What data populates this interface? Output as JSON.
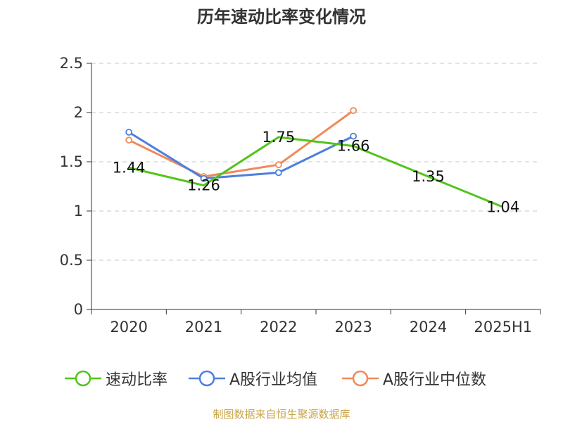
{
  "chart_data": {
    "type": "line",
    "title": "历年速动比率变化情况",
    "categories": [
      "2020",
      "2021",
      "2022",
      "2023",
      "2024",
      "2025H1"
    ],
    "ylim": [
      0,
      2.5
    ],
    "yticks": [
      0,
      0.5,
      1,
      1.5,
      2,
      2.5
    ],
    "yticklabels": [
      "0",
      "0.5",
      "1",
      "1.5",
      "2",
      "2.5"
    ],
    "grid": true,
    "legend_position": "bottom",
    "series": [
      {
        "name": "速动比率",
        "color": "#52c41a",
        "values": [
          1.44,
          1.26,
          1.75,
          1.66,
          1.35,
          1.04
        ],
        "labels": [
          "1.44",
          "1.26",
          "1.75",
          "1.66",
          "1.35",
          "1.04"
        ]
      },
      {
        "name": "A股行业均值",
        "color": "#4e7fdc",
        "values": [
          1.8,
          1.33,
          1.39,
          1.76,
          null,
          null
        ]
      },
      {
        "name": "A股行业中位数",
        "color": "#f0895a",
        "values": [
          1.72,
          1.35,
          1.47,
          2.02,
          null,
          null
        ]
      }
    ]
  },
  "footer": {
    "source": "制图数据来自恒生聚源数据库"
  }
}
